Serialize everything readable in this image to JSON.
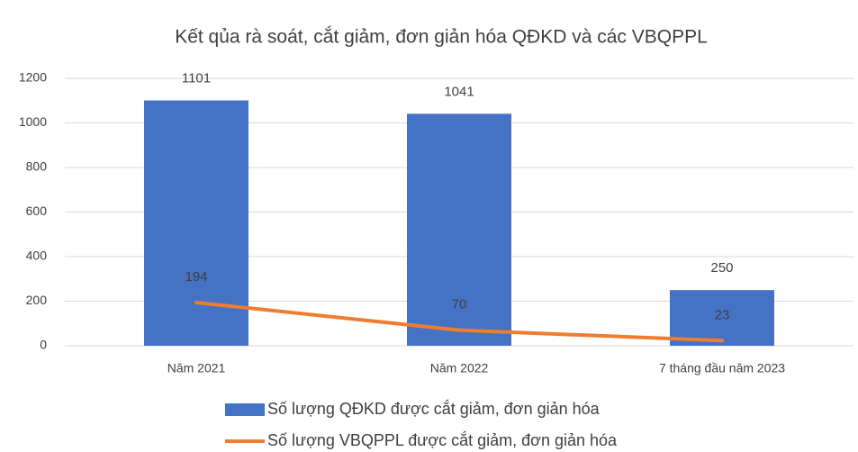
{
  "chart_data": {
    "type": "combo",
    "title": "Kết qủa rà soát, cắt giảm, đơn giản hóa QĐKD và các VBQPPL",
    "categories": [
      "Năm 2021",
      "Năm 2022",
      "7 tháng đầu năm 2023"
    ],
    "series": [
      {
        "name": "Số lượng QĐKD được cắt giảm, đơn giản hóa",
        "type": "bar",
        "color": "#4472c4",
        "values": [
          1101,
          1041,
          250
        ]
      },
      {
        "name": "Số lượng VBQPPL được cắt giảm, đơn giản hóa",
        "type": "line",
        "color": "#ed7d31",
        "values": [
          194,
          70,
          23
        ]
      }
    ],
    "ylim": [
      0,
      1200
    ],
    "yticks": [
      0,
      200,
      400,
      600,
      800,
      1000,
      1200
    ],
    "grid": true,
    "legend": "bottom"
  }
}
